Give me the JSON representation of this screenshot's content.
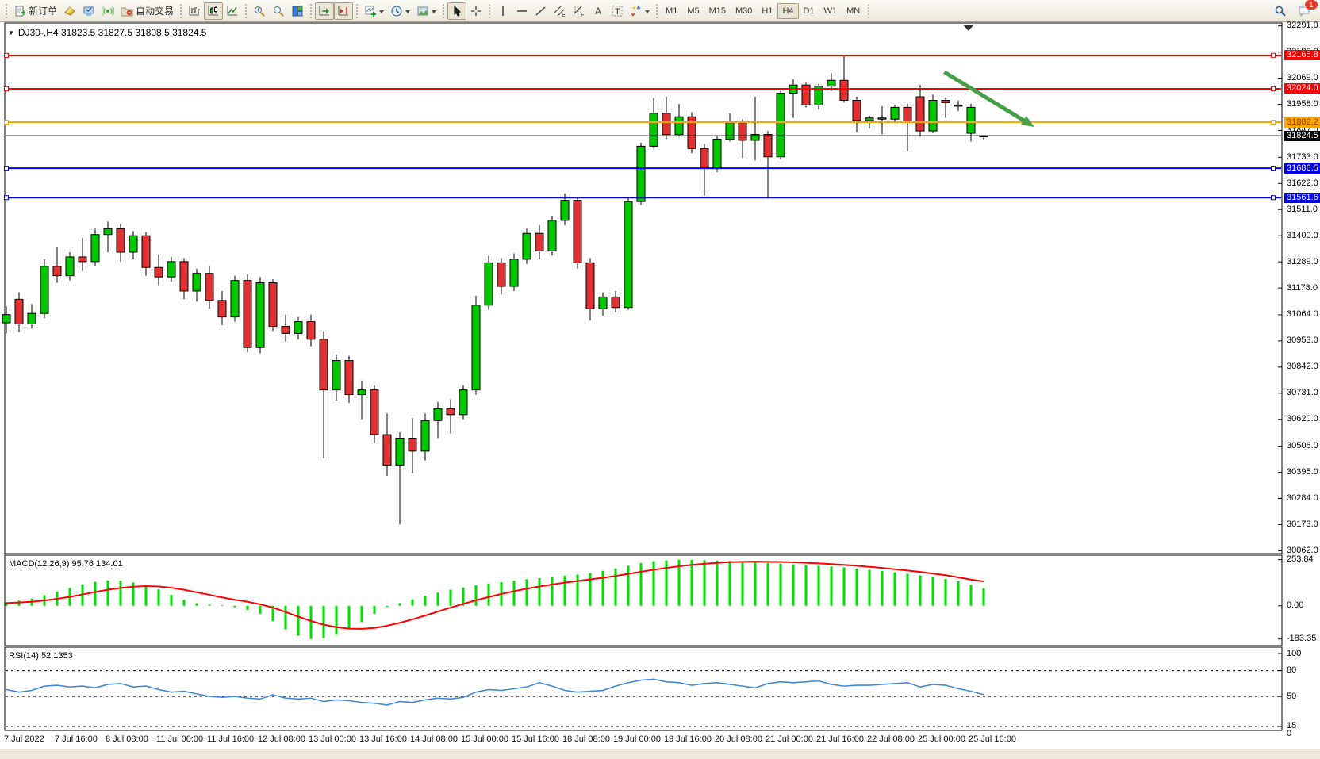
{
  "toolbar": {
    "new_order_label": "新订单",
    "algo_trading_label": "自动交易",
    "timeframes": [
      "M1",
      "M5",
      "M15",
      "M30",
      "H1",
      "H4",
      "D1",
      "W1",
      "MN"
    ],
    "active_timeframe": "H4",
    "notification_badge": "1",
    "glyphs": {
      "channel": "E",
      "fibonacci": "F",
      "text": "A",
      "text_label": "T"
    }
  },
  "chart": {
    "title": "DJ30-,H4  31823.5 31827.5 31808.5 31824.5",
    "symbol": "DJ30-",
    "timeframe": "H4",
    "open": "31823.5",
    "high": "31827.5",
    "low": "31808.5",
    "close": "31824.5"
  },
  "price_axis": {
    "ticks": [
      "32291.0",
      "32180.0",
      "32069.0",
      "31958.0",
      "31847.0",
      "31733.0",
      "31622.0",
      "31511.0",
      "31400.0",
      "31289.0",
      "31178.0",
      "31064.0",
      "30953.0",
      "30842.0",
      "30731.0",
      "30620.0",
      "30506.0",
      "30395.0",
      "30284.0",
      "30173.0",
      "30062.0"
    ]
  },
  "time_axis": {
    "labels": [
      "7 Jul 2022",
      "7 Jul 16:00",
      "8 Jul 08:00",
      "11 Jul 00:00",
      "11 Jul 16:00",
      "12 Jul 08:00",
      "13 Jul 00:00",
      "13 Jul 16:00",
      "14 Jul 08:00",
      "15 Jul 00:00",
      "15 Jul 16:00",
      "18 Jul 08:00",
      "19 Jul 00:00",
      "19 Jul 16:00",
      "20 Jul 08:00",
      "21 Jul 00:00",
      "21 Jul 16:00",
      "22 Jul 08:00",
      "25 Jul 00:00",
      "25 Jul 16:00"
    ]
  },
  "overlays": {
    "horizontal_lines": [
      {
        "price": 32165.8,
        "label": "32165.8",
        "color": "#ff0000",
        "label_text": "#ffffff"
      },
      {
        "price": 32024.0,
        "label": "32024.0",
        "color": "#ff0000",
        "label_text": "#ffffff"
      },
      {
        "price": 31882.2,
        "label": "31882.2",
        "color": "#ffa500",
        "label_text": "#8b3a00"
      },
      {
        "price": 31686.5,
        "label": "31686.5",
        "color": "#0000ee",
        "label_text": "#ffffff"
      },
      {
        "price": 31561.6,
        "label": "31561.6",
        "color": "#0000ee",
        "label_text": "#ffffff"
      }
    ],
    "current_price": {
      "price": 31824.5,
      "label": "31824.5",
      "color": "#000000",
      "label_text": "#ffffff"
    },
    "trend_arrow": {
      "from_bar": 73.9,
      "from_price": 32095,
      "to_bar": 81.0,
      "to_price": 31862,
      "color": "#46a046"
    },
    "shift_marker_bar": 75.8
  },
  "chart_data": [
    {
      "type": "candlestick",
      "title": "DJ30-,H4",
      "timeframe": "H4",
      "ylim": [
        30050,
        32300
      ],
      "up_color": "#00c800",
      "down_color": "#e03232",
      "candles": [
        [
          31030,
          31100,
          30985,
          31065
        ],
        [
          31130,
          31160,
          30990,
          31025
        ],
        [
          31025,
          31110,
          31005,
          31070
        ],
        [
          31070,
          31300,
          31050,
          31270
        ],
        [
          31270,
          31350,
          31200,
          31230
        ],
        [
          31230,
          31330,
          31210,
          31310
        ],
        [
          31310,
          31390,
          31250,
          31290
        ],
        [
          31290,
          31430,
          31270,
          31405
        ],
        [
          31405,
          31460,
          31330,
          31430
        ],
        [
          31430,
          31450,
          31290,
          31330
        ],
        [
          31330,
          31420,
          31300,
          31400
        ],
        [
          31400,
          31415,
          31230,
          31265
        ],
        [
          31265,
          31320,
          31190,
          31225
        ],
        [
          31225,
          31310,
          31205,
          31290
        ],
        [
          31290,
          31305,
          31130,
          31165
        ],
        [
          31165,
          31260,
          31120,
          31240
        ],
        [
          31240,
          31270,
          31090,
          31125
        ],
        [
          31125,
          31165,
          31020,
          31055
        ],
        [
          31055,
          31230,
          31035,
          31210
        ],
        [
          31210,
          31235,
          30905,
          30925
        ],
        [
          30925,
          31225,
          30900,
          31200
        ],
        [
          31200,
          31215,
          30995,
          31015
        ],
        [
          31015,
          31065,
          30950,
          30985
        ],
        [
          30985,
          31055,
          30960,
          31035
        ],
        [
          31035,
          31065,
          30930,
          30960
        ],
        [
          30960,
          30995,
          30455,
          30745
        ],
        [
          30745,
          30895,
          30700,
          30870
        ],
        [
          30870,
          30890,
          30690,
          30725
        ],
        [
          30725,
          30785,
          30620,
          30745
        ],
        [
          30745,
          30765,
          30520,
          30555
        ],
        [
          30555,
          30645,
          30380,
          30425
        ],
        [
          30425,
          30565,
          30173,
          30540
        ],
        [
          30540,
          30625,
          30390,
          30485
        ],
        [
          30485,
          30645,
          30445,
          30615
        ],
        [
          30615,
          30695,
          30540,
          30665
        ],
        [
          30665,
          30705,
          30560,
          30640
        ],
        [
          30640,
          30765,
          30620,
          30745
        ],
        [
          30745,
          31145,
          30725,
          31105
        ],
        [
          31105,
          31315,
          31085,
          31285
        ],
        [
          31285,
          31305,
          31150,
          31185
        ],
        [
          31185,
          31325,
          31165,
          31300
        ],
        [
          31300,
          31430,
          31280,
          31410
        ],
        [
          31410,
          31445,
          31300,
          31335
        ],
        [
          31335,
          31485,
          31315,
          31465
        ],
        [
          31465,
          31580,
          31445,
          31550
        ],
        [
          31550,
          31565,
          31260,
          31285
        ],
        [
          31285,
          31305,
          31040,
          31090
        ],
        [
          31090,
          31160,
          31060,
          31140
        ],
        [
          31140,
          31165,
          31075,
          31095
        ],
        [
          31095,
          31560,
          31085,
          31545
        ],
        [
          31545,
          31795,
          31530,
          31780
        ],
        [
          31780,
          31985,
          31770,
          31920
        ],
        [
          31920,
          31990,
          31810,
          31830
        ],
        [
          31830,
          31960,
          31820,
          31905
        ],
        [
          31905,
          31925,
          31750,
          31770
        ],
        [
          31770,
          31790,
          31570,
          31685
        ],
        [
          31685,
          31825,
          31670,
          31810
        ],
        [
          31810,
          31920,
          31800,
          31880
        ],
        [
          31880,
          31895,
          31730,
          31805
        ],
        [
          31805,
          31990,
          31720,
          31830
        ],
        [
          31830,
          31845,
          31560,
          31735
        ],
        [
          31735,
          32015,
          31725,
          32005
        ],
        [
          32005,
          32065,
          31900,
          32040
        ],
        [
          32040,
          32050,
          31945,
          31955
        ],
        [
          31955,
          32045,
          31935,
          32035
        ],
        [
          32035,
          32090,
          32015,
          32060
        ],
        [
          32060,
          32165.8,
          31965,
          31975
        ],
        [
          31975,
          31990,
          31840,
          31890
        ],
        [
          31890,
          31910,
          31855,
          31900
        ],
        [
          31900,
          31950,
          31830,
          31895
        ],
        [
          31895,
          31955,
          31880,
          31945
        ],
        [
          31945,
          31960,
          31760,
          31885
        ],
        [
          31990,
          32040,
          31820,
          31845
        ],
        [
          31845,
          32000,
          31835,
          31975
        ],
        [
          31975,
          31985,
          31900,
          31965
        ],
        [
          31955,
          31975,
          31930,
          31950
        ],
        [
          31835,
          31960,
          31800,
          31945
        ],
        [
          31823.5,
          31827.5,
          31808.5,
          31824.5
        ]
      ]
    },
    {
      "type": "bar",
      "name": "MACD",
      "label": "MACD(12,26,9) 95.76 134.01",
      "axis_ticks": [
        "253.84",
        "0.00",
        "-183.35"
      ],
      "ylim": [
        -215,
        274
      ],
      "bar_color": "#00dd00",
      "signal_color": "#ff0000",
      "values": [
        18,
        28,
        40,
        58,
        78,
        98,
        118,
        132,
        140,
        138,
        128,
        112,
        90,
        60,
        32,
        14,
        6,
        3,
        -8,
        -22,
        -45,
        -85,
        -130,
        -165,
        -183.3,
        -178,
        -160,
        -130,
        -90,
        -45,
        -5,
        15,
        35,
        55,
        72,
        88,
        100,
        112,
        122,
        130,
        138,
        146,
        152,
        158,
        165,
        172,
        180,
        192,
        205,
        220,
        235,
        245,
        250,
        253.8,
        253,
        251,
        249,
        247,
        244,
        240,
        236,
        232,
        228,
        224,
        220,
        216,
        211,
        205,
        198,
        191,
        184,
        176,
        167,
        157,
        147,
        135,
        115,
        95.76
      ],
      "signal": [
        15,
        18,
        22,
        29,
        38,
        49,
        62,
        76,
        88,
        98,
        105,
        108,
        106,
        99,
        88,
        74,
        60,
        46,
        33,
        22,
        8,
        -10,
        -34,
        -60,
        -84,
        -104,
        -118,
        -126,
        -127,
        -122,
        -110,
        -94,
        -75,
        -54,
        -32,
        -10,
        10,
        30,
        48,
        65,
        80,
        94,
        106,
        117,
        127,
        136,
        145,
        154,
        164,
        175,
        187,
        198,
        208,
        217,
        225,
        231,
        236,
        240,
        242,
        243,
        242,
        241,
        239,
        236,
        233,
        229,
        225,
        220,
        214,
        208,
        201,
        194,
        186,
        177,
        168,
        156,
        144,
        134.01
      ]
    },
    {
      "type": "line",
      "name": "RSI",
      "label": "RSI(14) 52.1353",
      "axis_ticks": [
        "100",
        "80",
        "50",
        "15",
        "0"
      ],
      "levels": [
        80,
        50,
        15
      ],
      "ylim": [
        0,
        100
      ],
      "color": "#4189d6",
      "values": [
        58,
        55,
        57,
        62,
        63,
        61,
        62,
        60,
        64,
        65,
        61,
        62,
        58,
        55,
        56,
        53,
        50,
        49,
        50,
        48,
        47,
        52,
        48,
        47,
        48,
        44,
        46,
        45,
        43,
        42,
        40,
        44,
        43,
        46,
        48,
        47,
        49,
        55,
        58,
        57,
        59,
        61,
        66,
        62,
        57,
        55,
        56,
        57,
        62,
        66,
        69,
        70,
        67,
        66,
        63,
        65,
        66,
        64,
        62,
        60,
        65,
        67,
        66,
        67,
        68,
        64,
        62,
        63,
        63,
        64,
        65,
        66,
        61,
        64,
        63,
        59,
        56,
        52.14
      ]
    }
  ]
}
